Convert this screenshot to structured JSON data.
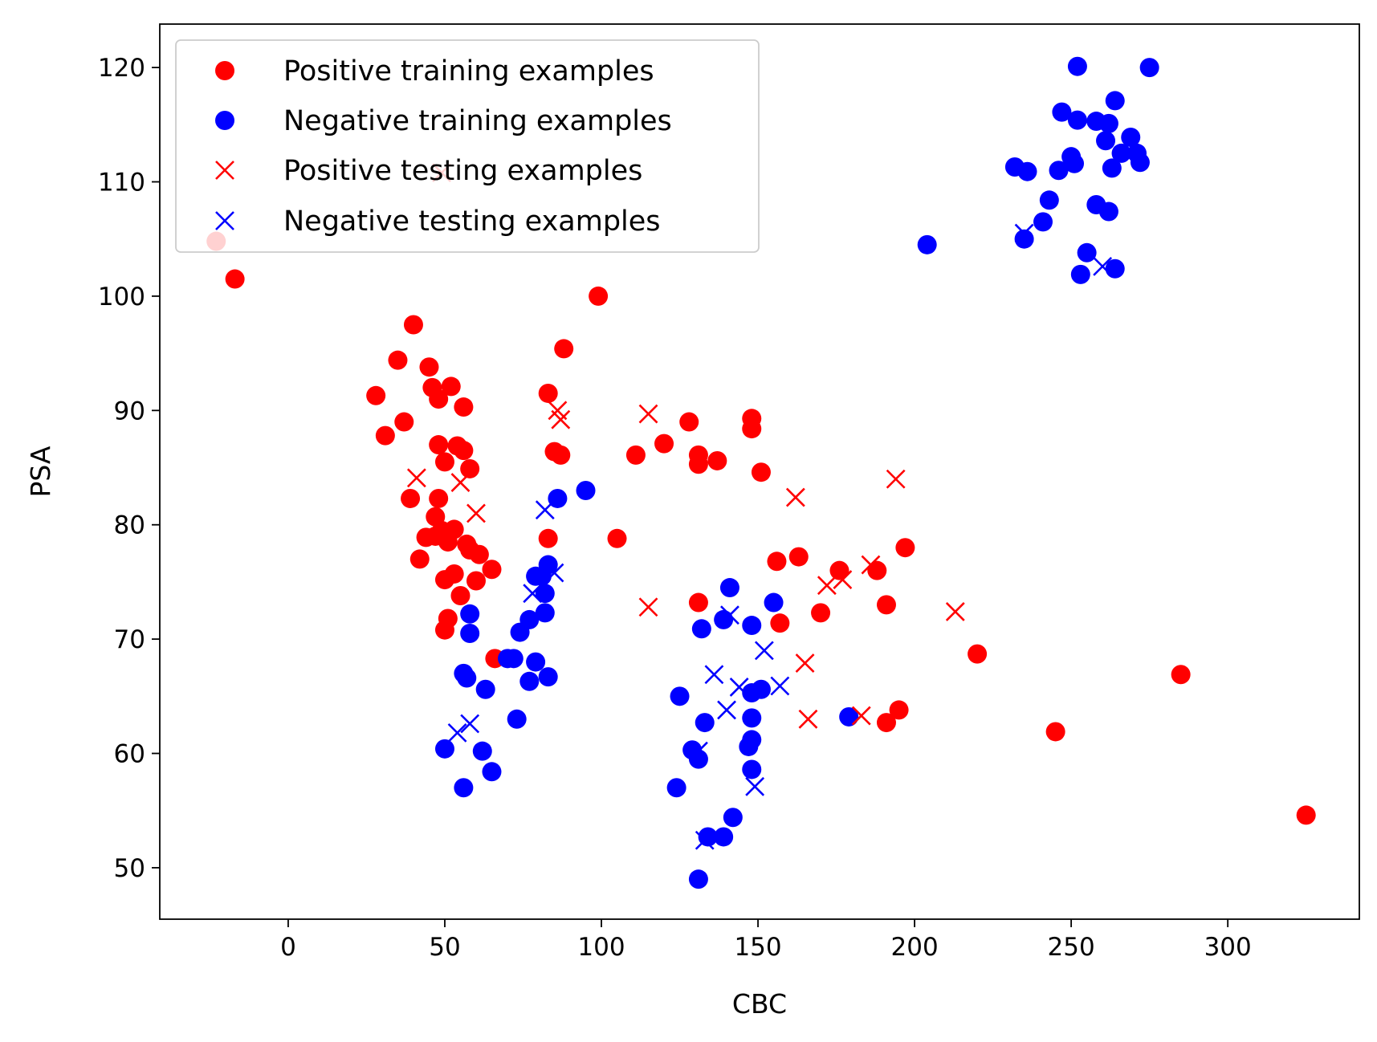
{
  "chart_data": {
    "type": "scatter",
    "title": "",
    "xlabel": "CBC",
    "ylabel": "PSA",
    "xlim": [
      -41,
      342
    ],
    "ylim": [
      45.5,
      123.8
    ],
    "xticks": [
      "0",
      "50",
      "100",
      "150",
      "200",
      "250",
      "300"
    ],
    "yticks": [
      "50",
      "60",
      "70",
      "80",
      "90",
      "100",
      "110",
      "120"
    ],
    "grid": false,
    "legend_position": "upper left",
    "colors": {
      "positive": "#ff0000",
      "negative": "#0000ff"
    },
    "series": [
      {
        "name": "Positive training examples",
        "marker": "circle",
        "color": "#ff0000",
        "points": [
          [
            -23,
            104.8
          ],
          [
            -17,
            101.5
          ],
          [
            28,
            91.3
          ],
          [
            31,
            87.8
          ],
          [
            35,
            94.4
          ],
          [
            37,
            89
          ],
          [
            39,
            82.3
          ],
          [
            40,
            97.5
          ],
          [
            42,
            77
          ],
          [
            44,
            78.9
          ],
          [
            45,
            93.8
          ],
          [
            46,
            92
          ],
          [
            47,
            80.7
          ],
          [
            47,
            79
          ],
          [
            48,
            91
          ],
          [
            48,
            87
          ],
          [
            48,
            82.3
          ],
          [
            49,
            79.5
          ],
          [
            50,
            85.5
          ],
          [
            50,
            75.2
          ],
          [
            50,
            70.8
          ],
          [
            51,
            71.8
          ],
          [
            51,
            78.5
          ],
          [
            52,
            92.1
          ],
          [
            53,
            79.6
          ],
          [
            53,
            75.7
          ],
          [
            54,
            86.9
          ],
          [
            55,
            73.8
          ],
          [
            56,
            86.5
          ],
          [
            56,
            90.3
          ],
          [
            57,
            78.3
          ],
          [
            58,
            84.9
          ],
          [
            58,
            77.8
          ],
          [
            60,
            75.1
          ],
          [
            61,
            77.4
          ],
          [
            65,
            76.1
          ],
          [
            66,
            68.3
          ],
          [
            83,
            91.5
          ],
          [
            83,
            78.8
          ],
          [
            85,
            86.4
          ],
          [
            87,
            86.1
          ],
          [
            88,
            95.4
          ],
          [
            99,
            100
          ],
          [
            105,
            78.8
          ],
          [
            111,
            86.1
          ],
          [
            120,
            87.1
          ],
          [
            128,
            89
          ],
          [
            131,
            86.1
          ],
          [
            131,
            85.3
          ],
          [
            131,
            73.2
          ],
          [
            137,
            85.6
          ],
          [
            148,
            89.3
          ],
          [
            148,
            88.4
          ],
          [
            151,
            84.6
          ],
          [
            156,
            76.8
          ],
          [
            157,
            71.4
          ],
          [
            163,
            77.2
          ],
          [
            170,
            72.3
          ],
          [
            176,
            76
          ],
          [
            188,
            76
          ],
          [
            191,
            73
          ],
          [
            191,
            62.7
          ],
          [
            195,
            63.8
          ],
          [
            197,
            78
          ],
          [
            220,
            68.7
          ],
          [
            245,
            61.9
          ],
          [
            285,
            66.9
          ],
          [
            325,
            54.6
          ]
        ]
      },
      {
        "name": "Negative training examples",
        "marker": "circle",
        "color": "#0000ff",
        "points": [
          [
            50,
            60.4
          ],
          [
            56,
            57
          ],
          [
            56,
            67
          ],
          [
            57,
            66.6
          ],
          [
            58,
            70.5
          ],
          [
            58,
            72.2
          ],
          [
            62,
            60.2
          ],
          [
            63,
            65.6
          ],
          [
            65,
            58.4
          ],
          [
            70,
            68.3
          ],
          [
            72,
            68.3
          ],
          [
            73,
            63
          ],
          [
            74,
            70.6
          ],
          [
            77,
            66.3
          ],
          [
            77,
            71.7
          ],
          [
            79,
            68
          ],
          [
            79,
            75.5
          ],
          [
            81,
            75.5
          ],
          [
            82,
            72.3
          ],
          [
            82,
            74
          ],
          [
            83,
            76.5
          ],
          [
            83,
            66.7
          ],
          [
            86,
            82.3
          ],
          [
            95,
            83
          ],
          [
            124,
            57
          ],
          [
            125,
            65
          ],
          [
            129,
            60.3
          ],
          [
            131,
            49
          ],
          [
            131,
            59.5
          ],
          [
            132,
            70.9
          ],
          [
            133,
            62.7
          ],
          [
            134,
            52.7
          ],
          [
            139,
            52.7
          ],
          [
            139,
            71.7
          ],
          [
            141,
            74.5
          ],
          [
            142,
            54.4
          ],
          [
            147,
            60.6
          ],
          [
            148,
            61.2
          ],
          [
            148,
            65.3
          ],
          [
            148,
            63.1
          ],
          [
            148,
            71.2
          ],
          [
            148,
            58.6
          ],
          [
            151,
            65.6
          ],
          [
            155,
            73.2
          ],
          [
            179,
            63.2
          ],
          [
            204,
            104.5
          ],
          [
            232,
            111.3
          ],
          [
            235,
            105
          ],
          [
            236,
            110.9
          ],
          [
            241,
            106.5
          ],
          [
            243,
            108.4
          ],
          [
            246,
            111
          ],
          [
            247,
            116.1
          ],
          [
            250,
            112.2
          ],
          [
            251,
            111.6
          ],
          [
            252,
            115.4
          ],
          [
            252,
            120.1
          ],
          [
            253,
            101.9
          ],
          [
            255,
            103.8
          ],
          [
            258,
            115.3
          ],
          [
            258,
            108
          ],
          [
            261,
            113.6
          ],
          [
            262,
            107.4
          ],
          [
            262,
            115.1
          ],
          [
            263,
            111.2
          ],
          [
            264,
            117.1
          ],
          [
            264,
            102.4
          ],
          [
            266,
            112.5
          ],
          [
            269,
            113.9
          ],
          [
            271,
            112.5
          ],
          [
            272,
            111.7
          ],
          [
            275,
            120
          ]
        ]
      },
      {
        "name": "Positive testing examples",
        "marker": "x",
        "color": "#ff0000",
        "points": [
          [
            41,
            84.1
          ],
          [
            49,
            110.8
          ],
          [
            55,
            83.7
          ],
          [
            60,
            81
          ],
          [
            86,
            90
          ],
          [
            87,
            89.2
          ],
          [
            115,
            89.7
          ],
          [
            115,
            72.8
          ],
          [
            162,
            82.4
          ],
          [
            165,
            67.9
          ],
          [
            166,
            63
          ],
          [
            172,
            74.7
          ],
          [
            177,
            75.2
          ],
          [
            183,
            63.3
          ],
          [
            186,
            76.5
          ],
          [
            194,
            84
          ],
          [
            213,
            72.4
          ]
        ]
      },
      {
        "name": "Negative testing examples",
        "marker": "x",
        "color": "#0000ff",
        "points": [
          [
            54,
            61.8
          ],
          [
            58,
            62.6
          ],
          [
            78,
            74
          ],
          [
            82,
            81.3
          ],
          [
            85,
            75.8
          ],
          [
            131,
            60.2
          ],
          [
            133,
            52.4
          ],
          [
            136,
            66.9
          ],
          [
            140,
            63.8
          ],
          [
            141,
            72.1
          ],
          [
            144,
            65.8
          ],
          [
            149,
            57.1
          ],
          [
            152,
            69
          ],
          [
            157,
            65.9
          ],
          [
            235,
            105.5
          ],
          [
            260,
            102.6
          ]
        ]
      }
    ]
  }
}
